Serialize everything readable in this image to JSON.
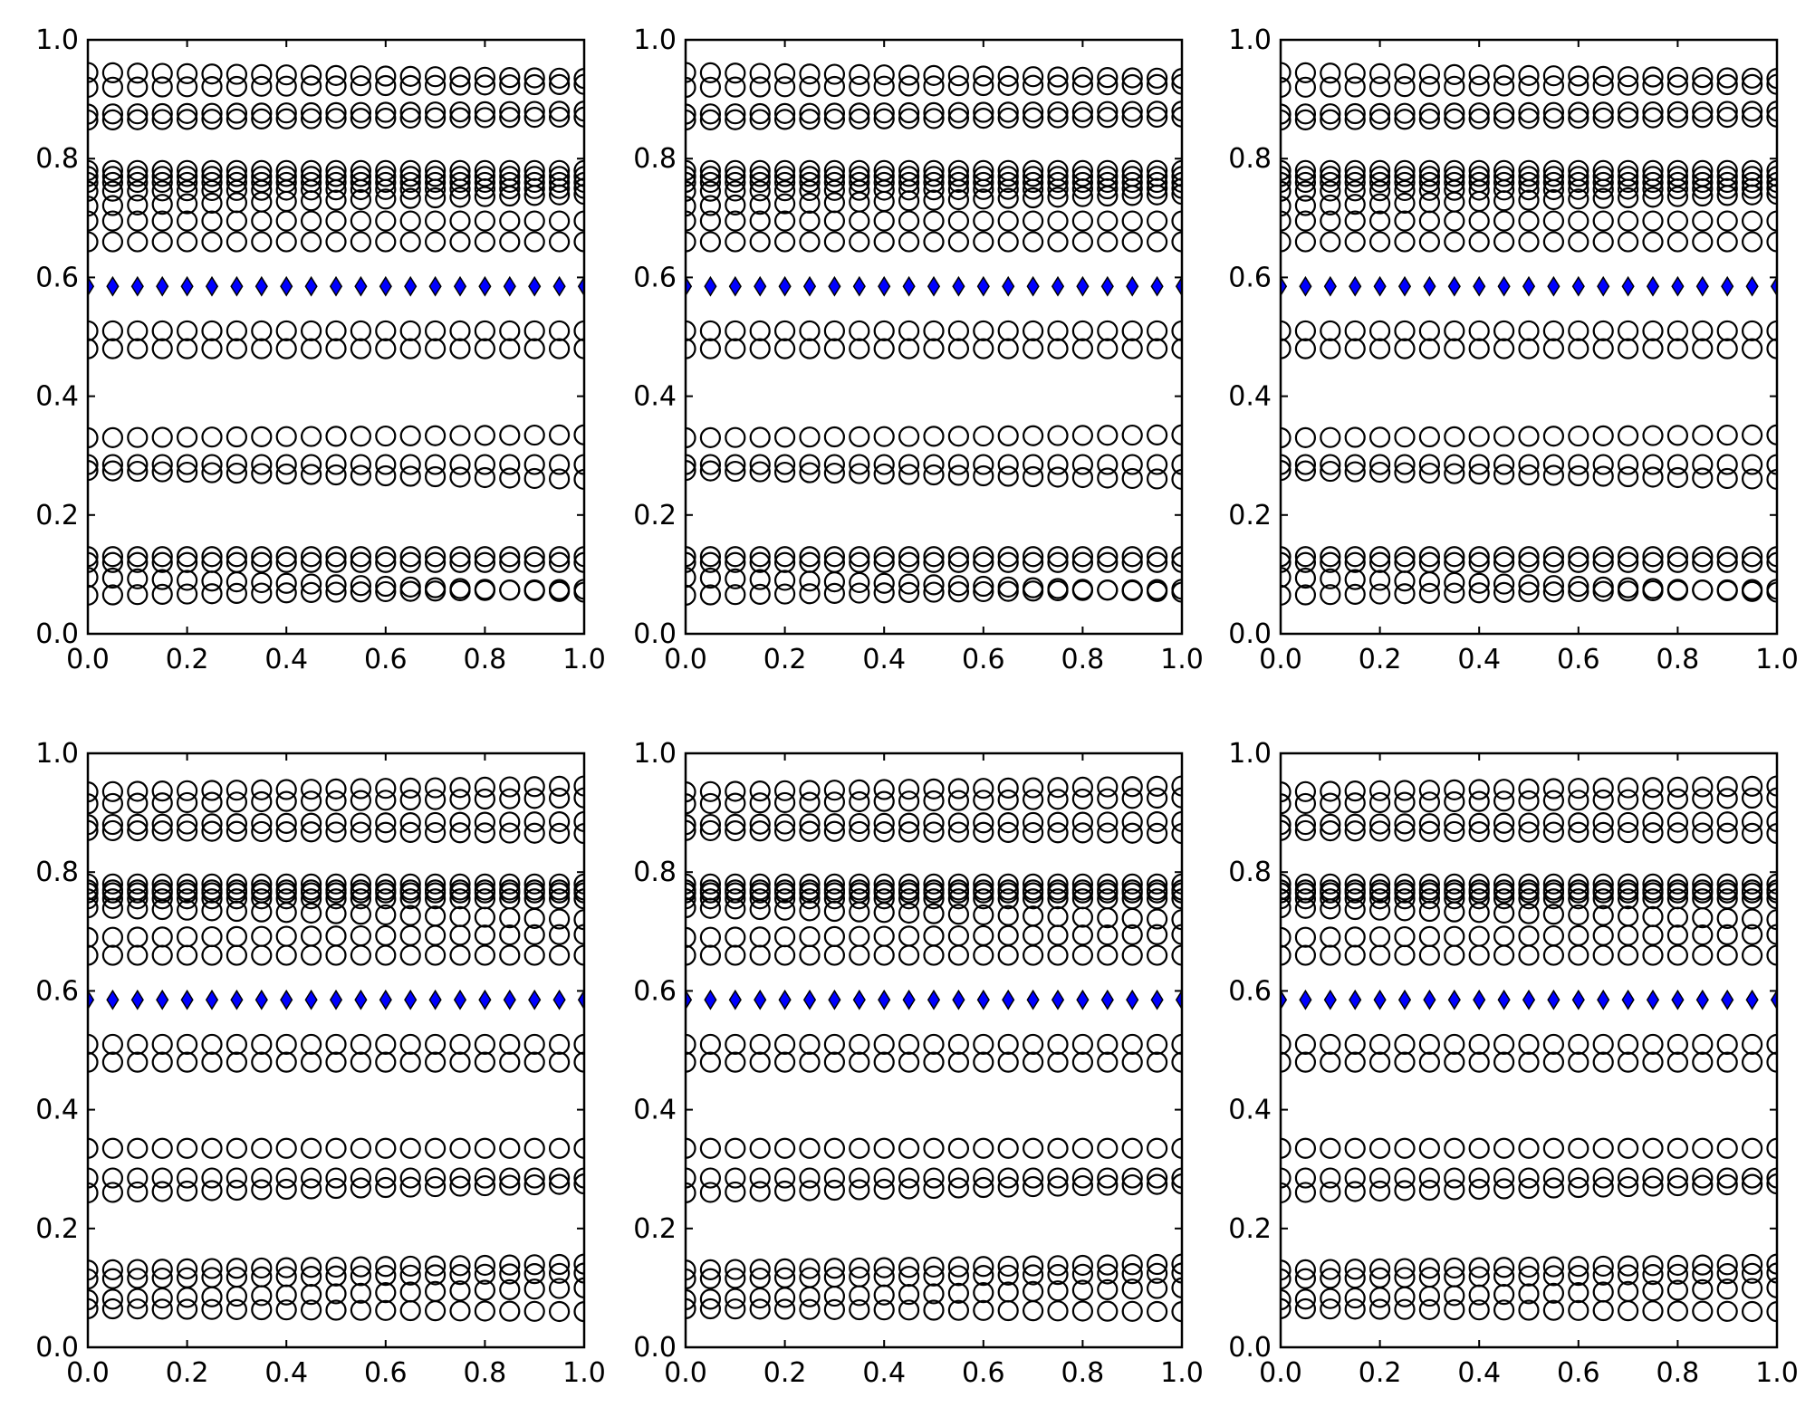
{
  "figure": {
    "ticks": {
      "x": [
        "0.0",
        "0.2",
        "0.4",
        "0.6",
        "0.8",
        "1.0"
      ],
      "y": [
        "0.0",
        "0.2",
        "0.4",
        "0.6",
        "0.8",
        "1.0"
      ]
    }
  },
  "colors": {
    "open_marker_edge": "#000000",
    "highlight_marker": "#0000ff",
    "axes": "#000000"
  },
  "chart_data": [
    {
      "type": "scatter",
      "xlim": [
        0,
        1
      ],
      "ylim": [
        0,
        1
      ],
      "grid": false,
      "x": [
        0.0,
        0.05,
        0.1,
        0.15,
        0.2,
        0.25,
        0.3,
        0.35,
        0.4,
        0.45,
        0.5,
        0.55,
        0.6,
        0.65,
        0.7,
        0.75,
        0.8,
        0.85,
        0.9,
        0.95,
        1.0
      ],
      "series": [
        {
          "marker": "circle-open",
          "rows": [
            [
              0.945,
              0.935
            ],
            [
              0.92,
              0.925
            ],
            [
              0.875,
              0.88
            ],
            [
              0.865,
              0.87
            ],
            [
              0.78,
              0.78
            ],
            [
              0.77,
              0.77
            ],
            [
              0.76,
              0.76
            ],
            [
              0.745,
              0.75
            ],
            [
              0.72,
              0.74
            ],
            [
              0.695,
              0.695
            ],
            [
              0.66,
              0.66
            ],
            [
              0.51,
              0.51
            ],
            [
              0.48,
              0.48
            ],
            [
              0.33,
              0.335
            ],
            [
              0.285,
              0.285
            ],
            [
              0.275,
              0.26
            ],
            [
              0.13,
              0.13
            ],
            [
              0.12,
              0.12
            ],
            [
              0.095,
              0.07
            ],
            [
              0.065,
              0.075
            ]
          ]
        },
        {
          "marker": "diamond-filled",
          "color": "#0000ff",
          "rows": [
            [
              0.585,
              0.585
            ]
          ]
        }
      ]
    },
    {
      "type": "scatter",
      "xlim": [
        0,
        1
      ],
      "ylim": [
        0,
        1
      ],
      "grid": false,
      "x": [
        0.0,
        0.05,
        0.1,
        0.15,
        0.2,
        0.25,
        0.3,
        0.35,
        0.4,
        0.45,
        0.5,
        0.55,
        0.6,
        0.65,
        0.7,
        0.75,
        0.8,
        0.85,
        0.9,
        0.95,
        1.0
      ],
      "series": [
        {
          "marker": "circle-open",
          "rows": [
            [
              0.945,
              0.935
            ],
            [
              0.92,
              0.925
            ],
            [
              0.875,
              0.88
            ],
            [
              0.865,
              0.87
            ],
            [
              0.78,
              0.78
            ],
            [
              0.77,
              0.77
            ],
            [
              0.76,
              0.76
            ],
            [
              0.745,
              0.75
            ],
            [
              0.72,
              0.74
            ],
            [
              0.695,
              0.695
            ],
            [
              0.66,
              0.66
            ],
            [
              0.51,
              0.51
            ],
            [
              0.48,
              0.48
            ],
            [
              0.33,
              0.335
            ],
            [
              0.285,
              0.285
            ],
            [
              0.275,
              0.26
            ],
            [
              0.13,
              0.13
            ],
            [
              0.12,
              0.12
            ],
            [
              0.095,
              0.07
            ],
            [
              0.065,
              0.075
            ]
          ]
        },
        {
          "marker": "diamond-filled",
          "color": "#0000ff",
          "rows": [
            [
              0.585,
              0.585
            ]
          ]
        }
      ]
    },
    {
      "type": "scatter",
      "xlim": [
        0,
        1
      ],
      "ylim": [
        0,
        1
      ],
      "grid": false,
      "x": [
        0.0,
        0.05,
        0.1,
        0.15,
        0.2,
        0.25,
        0.3,
        0.35,
        0.4,
        0.45,
        0.5,
        0.55,
        0.6,
        0.65,
        0.7,
        0.75,
        0.8,
        0.85,
        0.9,
        0.95,
        1.0
      ],
      "series": [
        {
          "marker": "circle-open",
          "rows": [
            [
              0.945,
              0.935
            ],
            [
              0.92,
              0.925
            ],
            [
              0.875,
              0.88
            ],
            [
              0.865,
              0.87
            ],
            [
              0.78,
              0.78
            ],
            [
              0.77,
              0.77
            ],
            [
              0.76,
              0.76
            ],
            [
              0.745,
              0.75
            ],
            [
              0.72,
              0.74
            ],
            [
              0.695,
              0.695
            ],
            [
              0.66,
              0.66
            ],
            [
              0.51,
              0.51
            ],
            [
              0.48,
              0.48
            ],
            [
              0.33,
              0.335
            ],
            [
              0.285,
              0.285
            ],
            [
              0.275,
              0.26
            ],
            [
              0.13,
              0.13
            ],
            [
              0.12,
              0.12
            ],
            [
              0.095,
              0.07
            ],
            [
              0.065,
              0.075
            ]
          ]
        },
        {
          "marker": "diamond-filled",
          "color": "#0000ff",
          "rows": [
            [
              0.585,
              0.585
            ]
          ]
        }
      ]
    },
    {
      "type": "scatter",
      "xlim": [
        0,
        1
      ],
      "ylim": [
        0,
        1
      ],
      "grid": false,
      "x": [
        0.0,
        0.05,
        0.1,
        0.15,
        0.2,
        0.25,
        0.3,
        0.35,
        0.4,
        0.45,
        0.5,
        0.55,
        0.6,
        0.65,
        0.7,
        0.75,
        0.8,
        0.85,
        0.9,
        0.95,
        1.0
      ],
      "series": [
        {
          "marker": "circle-open",
          "rows": [
            [
              0.935,
              0.945
            ],
            [
              0.915,
              0.925
            ],
            [
              0.88,
              0.885
            ],
            [
              0.87,
              0.865
            ],
            [
              0.78,
              0.78
            ],
            [
              0.77,
              0.77
            ],
            [
              0.765,
              0.765
            ],
            [
              0.755,
              0.755
            ],
            [
              0.74,
              0.72
            ],
            [
              0.69,
              0.695
            ],
            [
              0.66,
              0.66
            ],
            [
              0.51,
              0.51
            ],
            [
              0.48,
              0.48
            ],
            [
              0.335,
              0.335
            ],
            [
              0.285,
              0.285
            ],
            [
              0.26,
              0.275
            ],
            [
              0.13,
              0.14
            ],
            [
              0.115,
              0.125
            ],
            [
              0.08,
              0.1
            ],
            [
              0.065,
              0.06
            ]
          ]
        },
        {
          "marker": "diamond-filled",
          "color": "#0000ff",
          "rows": [
            [
              0.585,
              0.585
            ]
          ]
        }
      ]
    },
    {
      "type": "scatter",
      "xlim": [
        0,
        1
      ],
      "ylim": [
        0,
        1
      ],
      "grid": false,
      "x": [
        0.0,
        0.05,
        0.1,
        0.15,
        0.2,
        0.25,
        0.3,
        0.35,
        0.4,
        0.45,
        0.5,
        0.55,
        0.6,
        0.65,
        0.7,
        0.75,
        0.8,
        0.85,
        0.9,
        0.95,
        1.0
      ],
      "series": [
        {
          "marker": "circle-open",
          "rows": [
            [
              0.935,
              0.945
            ],
            [
              0.915,
              0.925
            ],
            [
              0.88,
              0.885
            ],
            [
              0.87,
              0.865
            ],
            [
              0.78,
              0.78
            ],
            [
              0.77,
              0.77
            ],
            [
              0.765,
              0.765
            ],
            [
              0.755,
              0.755
            ],
            [
              0.74,
              0.72
            ],
            [
              0.69,
              0.695
            ],
            [
              0.66,
              0.66
            ],
            [
              0.51,
              0.51
            ],
            [
              0.48,
              0.48
            ],
            [
              0.335,
              0.335
            ],
            [
              0.285,
              0.285
            ],
            [
              0.26,
              0.275
            ],
            [
              0.13,
              0.14
            ],
            [
              0.115,
              0.125
            ],
            [
              0.08,
              0.1
            ],
            [
              0.065,
              0.06
            ]
          ]
        },
        {
          "marker": "diamond-filled",
          "color": "#0000ff",
          "rows": [
            [
              0.585,
              0.585
            ]
          ]
        }
      ]
    },
    {
      "type": "scatter",
      "xlim": [
        0,
        1
      ],
      "ylim": [
        0,
        1
      ],
      "grid": false,
      "x": [
        0.0,
        0.05,
        0.1,
        0.15,
        0.2,
        0.25,
        0.3,
        0.35,
        0.4,
        0.45,
        0.5,
        0.55,
        0.6,
        0.65,
        0.7,
        0.75,
        0.8,
        0.85,
        0.9,
        0.95,
        1.0
      ],
      "series": [
        {
          "marker": "circle-open",
          "rows": [
            [
              0.935,
              0.945
            ],
            [
              0.915,
              0.925
            ],
            [
              0.88,
              0.885
            ],
            [
              0.87,
              0.865
            ],
            [
              0.78,
              0.78
            ],
            [
              0.77,
              0.77
            ],
            [
              0.765,
              0.765
            ],
            [
              0.755,
              0.755
            ],
            [
              0.74,
              0.72
            ],
            [
              0.69,
              0.695
            ],
            [
              0.66,
              0.66
            ],
            [
              0.51,
              0.51
            ],
            [
              0.48,
              0.48
            ],
            [
              0.335,
              0.335
            ],
            [
              0.285,
              0.285
            ],
            [
              0.26,
              0.275
            ],
            [
              0.13,
              0.14
            ],
            [
              0.115,
              0.125
            ],
            [
              0.08,
              0.1
            ],
            [
              0.065,
              0.06
            ]
          ]
        },
        {
          "marker": "diamond-filled",
          "color": "#0000ff",
          "rows": [
            [
              0.585,
              0.585
            ]
          ]
        }
      ]
    }
  ]
}
